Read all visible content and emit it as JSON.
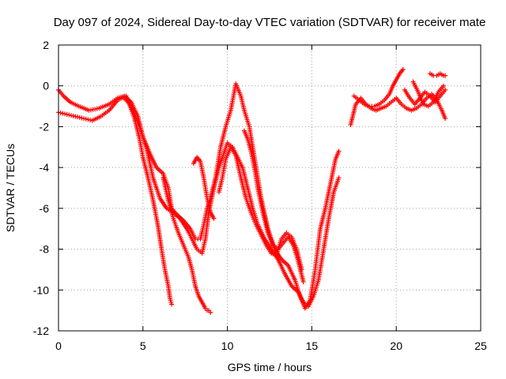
{
  "chart_data": {
    "type": "scatter",
    "title": "Day 097 of 2024, Sidereal Day-to-day VTEC variation (SDTVAR) for receiver mate",
    "xlabel": "GPS time / hours",
    "ylabel": "SDTVAR / TECUs",
    "xlim": [
      0,
      25
    ],
    "ylim": [
      -12,
      2
    ],
    "xticks": [
      0,
      5,
      10,
      15,
      20,
      25
    ],
    "yticks": [
      -12,
      -10,
      -8,
      -6,
      -4,
      -2,
      0,
      2
    ],
    "grid": true,
    "marker": "plus",
    "color": "#ff0000",
    "series": [
      {
        "x": [
          0.0,
          0.3,
          0.7,
          1.2,
          1.8,
          2.4,
          3.0,
          3.5,
          3.9,
          4.3,
          4.7,
          5.0,
          5.4,
          5.8,
          6.2,
          6.5,
          6.7,
          7.0,
          7.4,
          7.8,
          8.1,
          8.4,
          8.6,
          8.8,
          9.0,
          9.3,
          9.6,
          9.9,
          10.2,
          10.5,
          10.8,
          11.0,
          11.3,
          11.6,
          12.0,
          12.4,
          12.8,
          13.2,
          13.6,
          14.0,
          14.3,
          14.6,
          14.9,
          15.2,
          15.5,
          15.8,
          16.1,
          16.4,
          16.6
        ],
        "y": [
          -0.2,
          -0.5,
          -0.8,
          -1.0,
          -1.2,
          -1.1,
          -0.9,
          -0.6,
          -0.5,
          -0.8,
          -1.5,
          -2.5,
          -3.3,
          -4.0,
          -4.3,
          -5.0,
          -6.0,
          -6.3,
          -6.6,
          -7.0,
          -7.5,
          -7.5,
          -6.8,
          -6.0,
          -5.5,
          -4.5,
          -3.0,
          -2.0,
          -1.2,
          0.1,
          -0.5,
          -1.2,
          -2.0,
          -3.5,
          -5.5,
          -7.0,
          -8.0,
          -8.5,
          -8.8,
          -9.5,
          -10.3,
          -10.9,
          -10.5,
          -9.0,
          -7.0,
          -6.0,
          -4.8,
          -3.6,
          -3.2
        ]
      },
      {
        "x": [
          0.0,
          0.5,
          1.0,
          1.5,
          2.0,
          2.5,
          3.0,
          3.5,
          4.0,
          4.4,
          4.8,
          5.2,
          5.6,
          6.0,
          6.4,
          6.8,
          7.2,
          7.6,
          7.9,
          8.2,
          8.5,
          8.7,
          8.9,
          9.2,
          9.5,
          9.8,
          10.0,
          10.3,
          10.6,
          10.9,
          11.2,
          11.5,
          11.8,
          12.2,
          12.6,
          13.0,
          13.4,
          13.8,
          14.2,
          14.5,
          14.8,
          15.1,
          15.4,
          15.7,
          16.0,
          16.3,
          16.6
        ],
        "y": [
          -1.3,
          -1.4,
          -1.5,
          -1.6,
          -1.7,
          -1.5,
          -1.2,
          -0.7,
          -0.5,
          -1.2,
          -2.0,
          -3.0,
          -4.5,
          -5.5,
          -6.0,
          -6.2,
          -6.5,
          -7.0,
          -7.5,
          -8.0,
          -8.2,
          -7.5,
          -6.2,
          -5.0,
          -4.0,
          -3.3,
          -2.8,
          -3.0,
          -3.5,
          -4.0,
          -5.0,
          -6.0,
          -6.8,
          -7.5,
          -8.0,
          -8.5,
          -9.2,
          -9.8,
          -10.1,
          -10.6,
          -10.8,
          -10.3,
          -9.5,
          -8.0,
          -6.5,
          -5.2,
          -4.5
        ]
      },
      {
        "x": [
          3.9,
          4.2,
          4.5,
          4.8,
          5.0,
          5.3,
          5.6,
          5.9,
          6.1,
          6.3,
          6.5,
          6.6,
          6.7
        ],
        "y": [
          -0.6,
          -0.9,
          -1.6,
          -2.6,
          -3.5,
          -4.5,
          -5.6,
          -6.9,
          -8.0,
          -9.0,
          -9.8,
          -10.4,
          -10.7
        ]
      },
      {
        "x": [
          6.2,
          6.5,
          6.8,
          7.1,
          7.4,
          7.7,
          7.9,
          8.1,
          8.3,
          8.5,
          8.7,
          8.8,
          8.9,
          9.0
        ],
        "y": [
          -4.5,
          -5.6,
          -6.5,
          -7.2,
          -7.8,
          -8.4,
          -9.0,
          -9.8,
          -10.3,
          -10.6,
          -10.9,
          -11.0,
          -11.0,
          -11.1
        ]
      },
      {
        "x": [
          9.5,
          9.7,
          9.9,
          10.2,
          10.5,
          10.8,
          11.1,
          11.4,
          11.7,
          12.0,
          12.3,
          12.6,
          12.9,
          13.2,
          13.5,
          13.8,
          14.1,
          14.4
        ],
        "y": [
          -5.2,
          -4.5,
          -3.6,
          -3.0,
          -3.4,
          -4.5,
          -5.5,
          -6.2,
          -6.8,
          -7.3,
          -7.8,
          -8.2,
          -8.3,
          -7.5,
          -7.2,
          -7.4,
          -8.0,
          -9.0
        ]
      },
      {
        "x": [
          11.0,
          11.2,
          11.4,
          11.6,
          11.8,
          12.1,
          12.4,
          12.7,
          13.0,
          13.3,
          13.6,
          13.9,
          14.2,
          14.5
        ],
        "y": [
          -2.2,
          -2.6,
          -3.2,
          -4.0,
          -5.0,
          -6.2,
          -7.2,
          -7.8,
          -8.0,
          -7.7,
          -7.4,
          -7.8,
          -8.6,
          -9.6
        ]
      },
      {
        "x": [
          8.0,
          8.2,
          8.4,
          8.6,
          8.8,
          9.0,
          9.2
        ],
        "y": [
          -3.8,
          -3.5,
          -3.7,
          -4.5,
          -5.5,
          -6.2,
          -6.5
        ]
      },
      {
        "x": [
          17.3,
          17.6,
          17.9,
          18.2,
          18.5,
          18.8,
          19.1,
          19.4,
          19.7,
          20.0,
          20.3,
          20.6,
          20.9,
          21.2,
          21.5,
          21.8,
          22.1,
          22.4,
          22.7,
          22.9
        ],
        "y": [
          -1.9,
          -0.9,
          -0.6,
          -0.9,
          -1.1,
          -1.2,
          -1.1,
          -1.0,
          -0.8,
          -0.6,
          -0.9,
          -1.1,
          -1.2,
          -1.1,
          -0.9,
          -0.6,
          -0.4,
          -0.7,
          -1.2,
          -1.6
        ]
      },
      {
        "x": [
          17.5,
          17.8,
          18.1,
          18.4,
          18.7,
          19.0,
          19.3,
          19.6,
          19.8,
          20.0,
          20.2,
          20.4
        ],
        "y": [
          -0.5,
          -0.7,
          -0.9,
          -1.0,
          -1.0,
          -0.9,
          -0.7,
          -0.4,
          0.0,
          0.3,
          0.6,
          0.8
        ]
      },
      {
        "x": [
          20.5,
          20.8,
          21.1,
          21.4,
          21.7,
          22.0,
          22.3,
          22.6,
          22.9
        ],
        "y": [
          -0.2,
          -0.6,
          -0.9,
          -0.6,
          -0.3,
          -0.5,
          -0.8,
          -0.5,
          -0.2
        ]
      },
      {
        "x": [
          21.0,
          21.3,
          21.6,
          21.9,
          22.2,
          22.5,
          22.8
        ],
        "y": [
          0.2,
          -0.3,
          -0.9,
          -1.0,
          -0.8,
          -0.3,
          0.0
        ]
      },
      {
        "x": [
          22.0,
          22.2,
          22.4,
          22.6,
          22.8,
          22.9
        ],
        "y": [
          0.6,
          0.5,
          0.5,
          0.6,
          0.5,
          0.5
        ]
      }
    ]
  }
}
